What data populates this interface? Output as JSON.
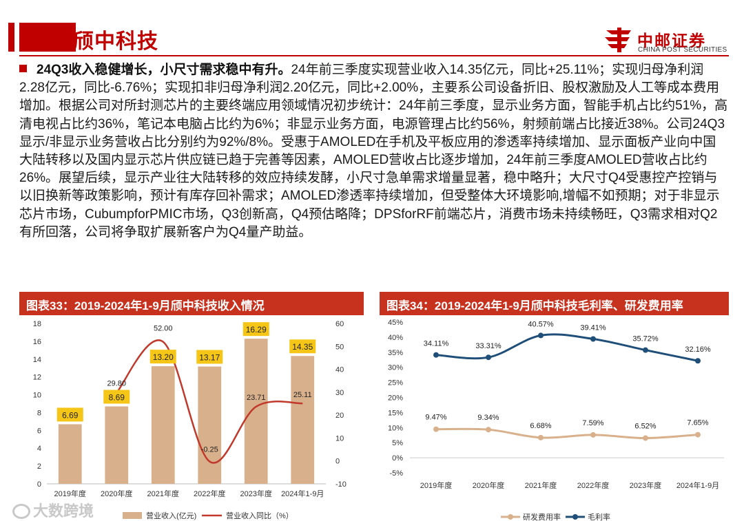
{
  "header": {
    "title": "颀中科技",
    "logo_cn": "中邮证券",
    "logo_en": "CHINA POST SECURITIES"
  },
  "body": {
    "lead": "24Q3收入稳健增长，小尺寸需求稳中有升。",
    "text": "24年前三季度实现营业收入14.35亿元，同比+25.11%；实现归母净利润2.28亿元，同比-6.76%；实现扣非归母净利润2.20亿元，同比+2.00%，主要系公司设备折旧、股权激励及人工等成本费用增加。根据公司对所封测芯片的主要终端应用领域情况初步统计：24年前三季度，显示业务方面，智能手机占比约51%，高清电视占比约36%，笔记本电脑占比约为6%；非显示业务方面，电源管理占比约56%，射频前端占比接近38%。公司24Q3显示/非显示业务营收占比分别约为92%/8%。受惠于AMOLED在手机及平板应用的渗透率持续增加、显示面板产业向中国大陆转移以及国内显示芯片供应链已趋于完善等因素，AMOLED营收占比逐步增加，24年前三季度AMOLED营收占比约26%。展望后续，显示产业往大陆转移的效应持续发酵，小尺寸急单需求增量显著，稳中略升；大尺寸Q4受惠控产控销与以旧换新等政策影响，预计有库存回补需求；AMOLED渗透率持续增加，但受整体大环境影响,增幅不如预期；对于非显示芯片市场，CubumpforPMIC市场，Q3创新高，Q4预估略降；DPSforRF前端芯片，消费市场未持续畅旺，Q3需求相对Q2有所回落，公司将争取扩展新客户为Q4量产助益。"
  },
  "panels": {
    "left_title": "图表33：2019-2024年1-9月颀中科技收入情况",
    "right_title": "图表34：2019-2024年1-9月颀中科技毛利率、研发费用率"
  },
  "watermark": "大数跨境",
  "colors": {
    "brand_red": "#c00000",
    "panel_red": "#c7321f",
    "bar": "#d9b08c",
    "label_box": "#f5c518",
    "yoy_line": "#c0392b",
    "gross_line": "#1f4e79",
    "rd_line": "#d9b08c"
  },
  "chart_data": [
    {
      "type": "bar",
      "categories": [
        "2019年度",
        "2020年度",
        "2021年度",
        "2022年度",
        "2023年度",
        "2024年1-9月"
      ],
      "series": [
        {
          "name": "营业收入(亿元)",
          "values": [
            6.69,
            8.69,
            13.2,
            13.17,
            16.29,
            14.35
          ],
          "axis": "left"
        },
        {
          "name": "营业收入同比（%）",
          "type": "line",
          "values": [
            null,
            29.8,
            52.0,
            -0.25,
            23.71,
            25.11
          ],
          "axis": "right"
        }
      ],
      "bar_labels": [
        "6.69",
        "8.69",
        "13.20",
        "13.17",
        "16.29",
        "14.35"
      ],
      "line_labels": [
        "",
        "29.80",
        "52.00",
        "-0.25",
        "23.71",
        "25.11"
      ],
      "ylim": [
        0,
        18
      ],
      "yticks": [
        "0",
        "2",
        "4",
        "6",
        "8",
        "10",
        "12",
        "14",
        "16",
        "18"
      ],
      "y2lim": [
        -10,
        60
      ],
      "y2ticks": [
        "-10",
        "0",
        "10",
        "20",
        "30",
        "40",
        "50",
        "60"
      ],
      "legend": "bottom"
    },
    {
      "type": "line",
      "categories": [
        "2019年度",
        "2020年度",
        "2021年度",
        "2022年度",
        "2023年度",
        "2024年1-9月"
      ],
      "series": [
        {
          "name": "毛利率",
          "values": [
            34.11,
            33.31,
            40.57,
            39.41,
            35.72,
            32.16
          ]
        },
        {
          "name": "研发费用率",
          "values": [
            9.47,
            9.34,
            6.68,
            7.59,
            6.52,
            7.65
          ]
        }
      ],
      "labels_gross": [
        "34.11%",
        "33.31%",
        "40.57%",
        "39.41%",
        "35.72%",
        "32.16%"
      ],
      "labels_rd": [
        "9.47%",
        "9.34%",
        "6.68%",
        "7.59%",
        "6.52%",
        "7.65%"
      ],
      "ylim": [
        -5,
        45
      ],
      "yticks": [
        "-5%",
        "0%",
        "5%",
        "10%",
        "15%",
        "20%",
        "25%",
        "30%",
        "35%",
        "40%",
        "45%"
      ],
      "legend": "bottom"
    }
  ]
}
